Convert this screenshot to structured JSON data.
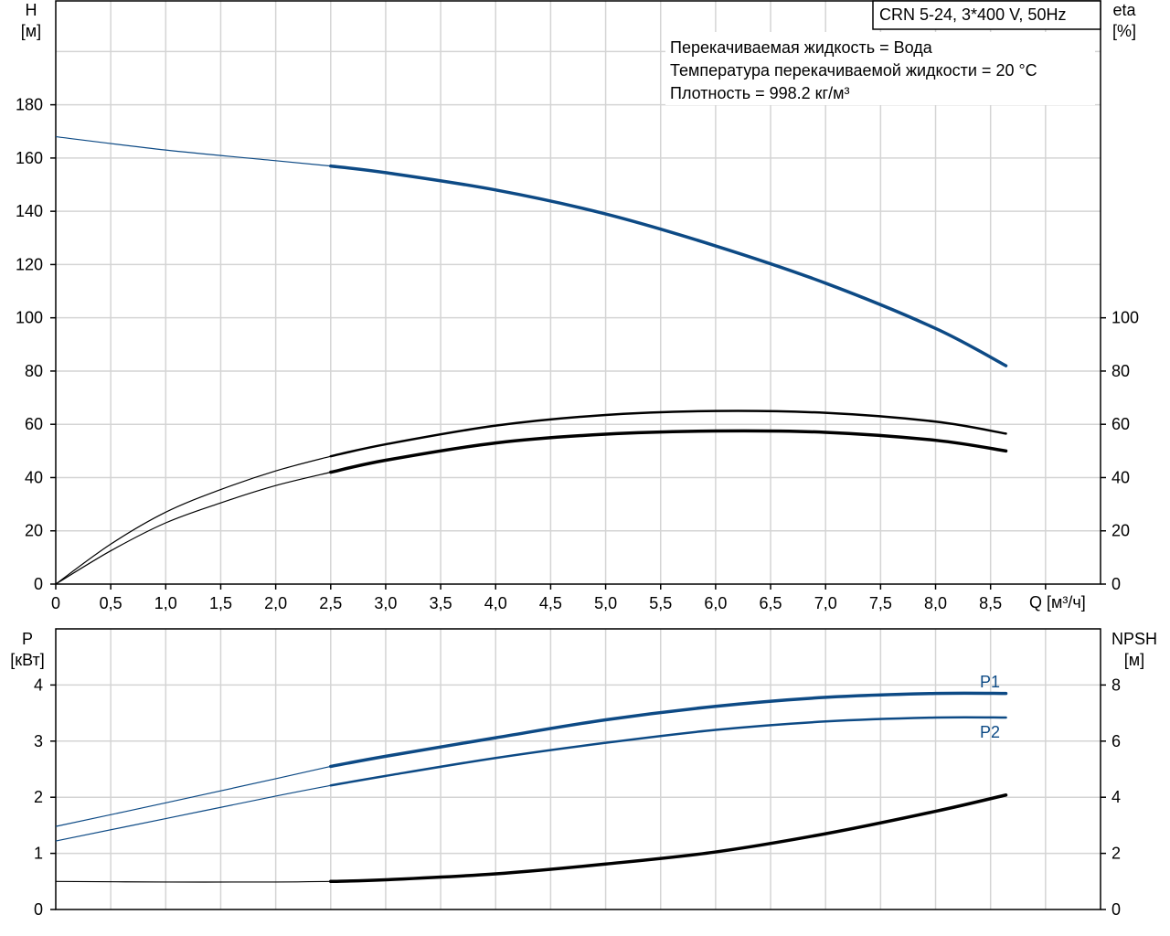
{
  "chart_data": [
    {
      "type": "line",
      "title": "CRN 5-24, 3*400 V, 50Hz",
      "annotations": [
        "Перекачиваемая жидкость = Вода",
        "Температура перекачиваемой жидкости = 20 °C",
        "Плотность = 998.2 кг/м³"
      ],
      "xlabel": "Q [м³/ч]",
      "ylabel_left": [
        "H",
        "[м]"
      ],
      "ylabel_right": [
        "eta",
        "[%]"
      ],
      "xlim": [
        0,
        9.5
      ],
      "ylim_left": [
        0,
        219
      ],
      "ylim_right": [
        0,
        219
      ],
      "x_ticks": [
        "0",
        "0,5",
        "1,0",
        "1,5",
        "2,0",
        "2,5",
        "3,0",
        "3,5",
        "4,0",
        "4,5",
        "5,0",
        "5,5",
        "6,0",
        "6,5",
        "7,0",
        "7,5",
        "8,0",
        "8,5"
      ],
      "y_ticks_left": [
        "0",
        "20",
        "40",
        "60",
        "80",
        "100",
        "120",
        "140",
        "160",
        "180"
      ],
      "y_ticks_right": [
        "0",
        "20",
        "40",
        "60",
        "80",
        "100"
      ],
      "grid": true,
      "operating_range_start": 2.5,
      "series": [
        {
          "axis": "left",
          "color": "#0d4a85",
          "x": [
            0,
            1.0,
            2.0,
            2.5,
            3.0,
            4.0,
            5.0,
            6.0,
            7.0,
            8.0,
            8.64
          ],
          "values": [
            168,
            163,
            159,
            157,
            154.5,
            148,
            139,
            127,
            113,
            96,
            82
          ]
        },
        {
          "axis": "right",
          "color": "#000000",
          "x": [
            0,
            0.5,
            1.0,
            1.5,
            2.0,
            2.5,
            3.0,
            4.0,
            5.0,
            6.0,
            7.0,
            8.0,
            8.64
          ],
          "values": [
            0,
            15,
            27,
            35.5,
            42.5,
            48,
            52.5,
            59.5,
            63.5,
            65,
            64.3,
            61,
            56.5
          ]
        },
        {
          "axis": "right",
          "color": "#000000",
          "x": [
            0,
            0.5,
            1.0,
            1.5,
            2.0,
            2.5,
            3.0,
            4.0,
            5.0,
            6.0,
            7.0,
            8.0,
            8.64
          ],
          "values": [
            0,
            12.5,
            23,
            30.5,
            37,
            42,
            46.5,
            53,
            56.3,
            57.5,
            57,
            54,
            50
          ]
        }
      ]
    },
    {
      "type": "line",
      "xlabel": "",
      "ylabel_left": [
        "P",
        "[кВт]"
      ],
      "ylabel_right": [
        "NPSH",
        "[м]"
      ],
      "xlim": [
        0,
        9.5
      ],
      "ylim_left": [
        0,
        5
      ],
      "ylim_right": [
        0,
        10
      ],
      "y_ticks_left": [
        "0",
        "1",
        "2",
        "3",
        "4"
      ],
      "y_ticks_right": [
        "0",
        "2",
        "4",
        "6",
        "8"
      ],
      "grid": true,
      "operating_range_start": 2.5,
      "series": [
        {
          "name": "P1",
          "axis": "left",
          "color": "#0d4a85",
          "x": [
            0,
            1.0,
            2.0,
            2.5,
            3.0,
            4.0,
            5.0,
            6.0,
            7.0,
            8.0,
            8.64
          ],
          "values": [
            1.48,
            1.9,
            2.33,
            2.55,
            2.73,
            3.06,
            3.38,
            3.62,
            3.78,
            3.85,
            3.85
          ]
        },
        {
          "name": "P2",
          "axis": "left",
          "color": "#0d4a85",
          "x": [
            0,
            1.0,
            2.0,
            2.5,
            3.0,
            4.0,
            5.0,
            6.0,
            7.0,
            8.0,
            8.64
          ],
          "values": [
            1.22,
            1.62,
            2.02,
            2.21,
            2.38,
            2.7,
            2.97,
            3.2,
            3.35,
            3.42,
            3.42
          ]
        },
        {
          "axis": "right",
          "color": "#000000",
          "x": [
            0,
            1.0,
            2.0,
            2.5,
            3.0,
            4.0,
            5.0,
            6.0,
            7.0,
            8.0,
            8.64
          ],
          "values": [
            1.0,
            0.98,
            0.98,
            1.0,
            1.06,
            1.27,
            1.62,
            2.05,
            2.7,
            3.5,
            4.08
          ]
        }
      ]
    }
  ]
}
